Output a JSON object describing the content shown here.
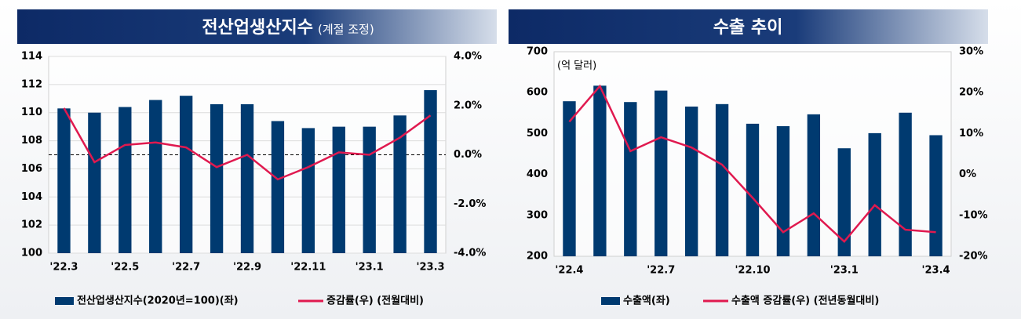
{
  "chart_data": [
    {
      "type": "bar",
      "title": "전산업생산지수",
      "subtitle": "(계절 조정)",
      "categories": [
        "'22.3",
        null,
        "'22.5",
        null,
        "'22.7",
        null,
        "'22.9",
        null,
        "'22.11",
        null,
        "'23.1",
        null,
        "'23.3"
      ],
      "series": [
        {
          "name": "전산업생산지수(2020년=100)(좌)",
          "type": "bar",
          "color": "#003a70",
          "values": [
            110.3,
            110.0,
            110.4,
            110.9,
            111.2,
            110.6,
            110.6,
            109.4,
            108.9,
            109.0,
            109.0,
            109.8,
            111.6
          ]
        },
        {
          "name": "증감률(우) (전월대비)",
          "type": "line",
          "axis": "y2",
          "color": "#e0194f",
          "values": [
            1.9,
            -0.3,
            0.4,
            0.5,
            0.3,
            -0.5,
            0.0,
            -1.0,
            -0.5,
            0.1,
            0.0,
            0.7,
            1.6
          ]
        }
      ],
      "ylim": [
        100,
        114
      ],
      "yticks": [
        100,
        102,
        104,
        106,
        108,
        110,
        112,
        114
      ],
      "y2lim": [
        -4,
        4
      ],
      "y2ticks": [
        {
          "value": -4,
          "label": "-4.0%"
        },
        {
          "value": -2,
          "label": "-2.0%"
        },
        {
          "value": 0,
          "label": "0.0%"
        },
        {
          "value": 2,
          "label": "2.0%"
        },
        {
          "value": 4,
          "label": "4.0%"
        }
      ],
      "reference_line": 0,
      "grid": true,
      "legend": "bottom"
    },
    {
      "type": "bar",
      "title": "수출 추이",
      "unit": "(억 달러)",
      "categories": [
        "'22.4",
        null,
        null,
        "'22.7",
        null,
        null,
        "'22.10",
        null,
        null,
        "'23.1",
        null,
        null,
        "'23.4"
      ],
      "series": [
        {
          "name": "수출액(좌)",
          "type": "bar",
          "color": "#003a70",
          "values": [
            579,
            617,
            577,
            605,
            566,
            572,
            524,
            518,
            547,
            464,
            501,
            551,
            496
          ]
        },
        {
          "name": "수출액 증감률(우) (전년동월대비)",
          "type": "line",
          "axis": "y2",
          "color": "#e0194f",
          "values": [
            12.9,
            21.6,
            5.7,
            9.1,
            6.6,
            2.4,
            -5.7,
            -14.1,
            -9.5,
            -16.4,
            -7.5,
            -13.5,
            -14.1
          ]
        }
      ],
      "ylim": [
        200,
        700
      ],
      "yticks": [
        200,
        300,
        400,
        500,
        600,
        700
      ],
      "y2lim": [
        -20,
        30
      ],
      "y2ticks": [
        {
          "value": -20,
          "label": "-20%"
        },
        {
          "value": -10,
          "label": "-10%"
        },
        {
          "value": 0,
          "label": "0%"
        },
        {
          "value": 10,
          "label": "10%"
        },
        {
          "value": 20,
          "label": "20%"
        },
        {
          "value": 30,
          "label": "30%"
        }
      ],
      "grid": false,
      "legend": "bottom"
    }
  ]
}
